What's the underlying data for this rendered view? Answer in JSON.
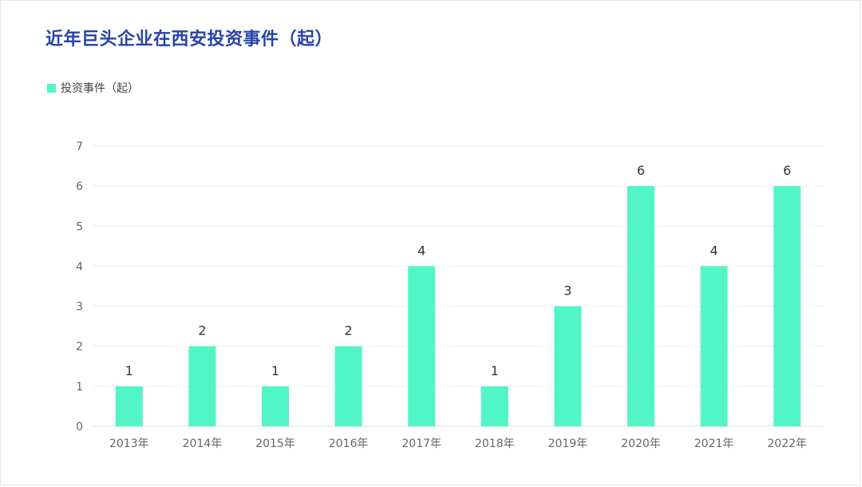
{
  "chart_data": {
    "type": "bar",
    "title": "近年巨头企业在西安投资事件（起）",
    "categories": [
      "2013年",
      "2014年",
      "2015年",
      "2016年",
      "2017年",
      "2018年",
      "2019年",
      "2020年",
      "2021年",
      "2022年"
    ],
    "series": [
      {
        "name": "投资事件（起）",
        "values": [
          1,
          2,
          1,
          2,
          4,
          1,
          3,
          6,
          4,
          6
        ]
      }
    ],
    "xlabel": "",
    "ylabel": "",
    "ylim": [
      0,
      7
    ],
    "yticks": [
      0,
      1,
      2,
      3,
      4,
      5,
      6,
      7
    ],
    "grid": true,
    "legend": "top-left",
    "colors": {
      "bar": "#52f5c8",
      "title": "#2743a8",
      "grid": "#eeeeee"
    }
  }
}
